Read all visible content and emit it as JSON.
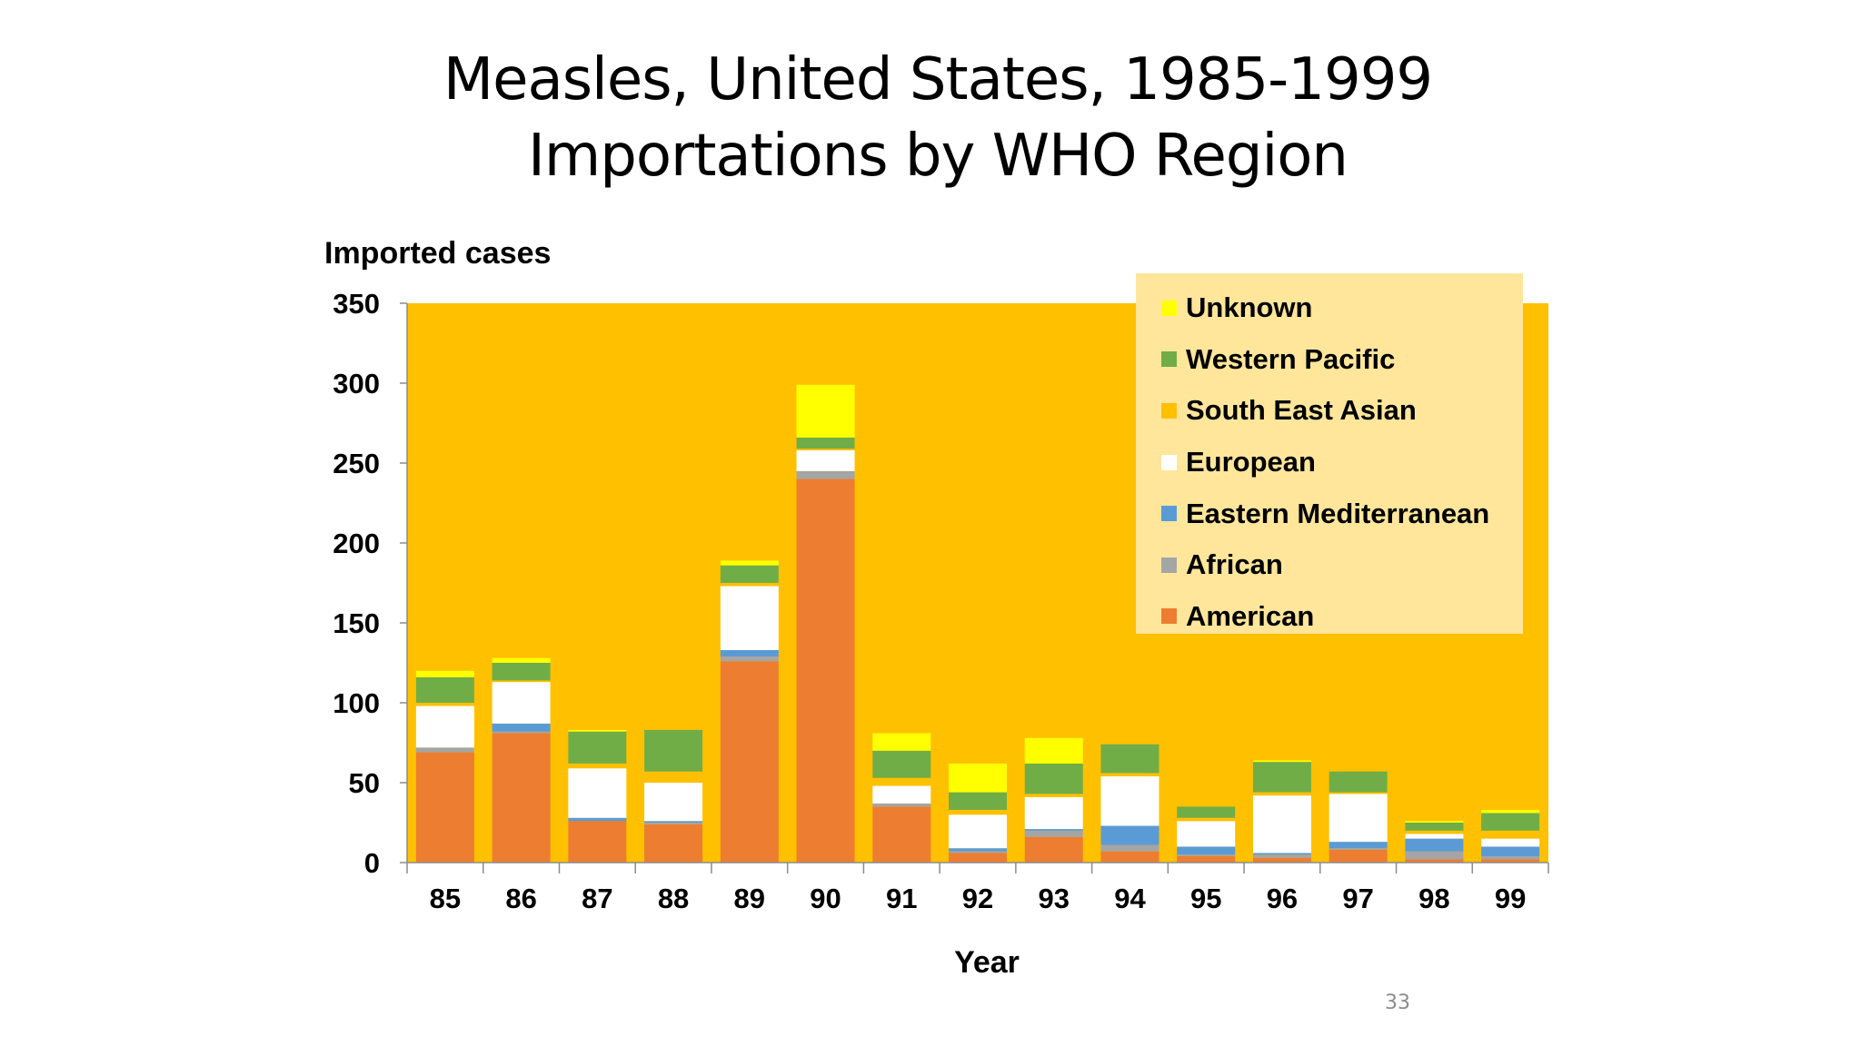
{
  "slide": {
    "title_line1": "Measles, United States, 1985-1999",
    "title_line2": "Importations by WHO Region",
    "page_number": "33"
  },
  "colors": {
    "plot_background": "#ffc000",
    "American": "#ed7d31",
    "African": "#a5a5a5",
    "Eastern Mediterranean": "#5b9bd5",
    "European": "#ffffff",
    "South East Asian": "#ffc000",
    "Western Pacific": "#70ad47",
    "Unknown": "#ffff00"
  },
  "legend": {
    "items": [
      {
        "label": "Unknown",
        "color": "#ffff00"
      },
      {
        "label": "Western Pacific",
        "color": "#70ad47"
      },
      {
        "label": "South East Asian",
        "color": "#ffc000"
      },
      {
        "label": "European",
        "color": "#ffffff"
      },
      {
        "label": "Eastern Mediterranean",
        "color": "#5b9bd5"
      },
      {
        "label": "African",
        "color": "#a5a5a5"
      },
      {
        "label": "American",
        "color": "#ed7d31"
      }
    ]
  },
  "chart_data": {
    "type": "bar",
    "stacked": true,
    "title": "Measles, United States, 1985-1999 Importations by WHO Region",
    "xlabel": "Year",
    "ylabel": "Imported cases",
    "ylim": [
      0,
      350
    ],
    "yticks": [
      0,
      50,
      100,
      150,
      200,
      250,
      300,
      350
    ],
    "grid": false,
    "legend_position": "top-right",
    "categories": [
      "85",
      "86",
      "87",
      "88",
      "89",
      "90",
      "91",
      "92",
      "93",
      "94",
      "95",
      "96",
      "97",
      "98",
      "99"
    ],
    "series": [
      {
        "name": "American",
        "values": [
          69,
          81,
          26,
          24,
          126,
          240,
          35,
          6,
          16,
          7,
          4,
          3,
          8,
          2,
          2
        ]
      },
      {
        "name": "African",
        "values": [
          3,
          1,
          0,
          1,
          3,
          5,
          2,
          1,
          4,
          4,
          1,
          2,
          1,
          5,
          2
        ]
      },
      {
        "name": "Eastern Mediterranean",
        "values": [
          0,
          5,
          2,
          1,
          4,
          0,
          0,
          2,
          1,
          12,
          5,
          1,
          4,
          8,
          6
        ]
      },
      {
        "name": "European",
        "values": [
          26,
          26,
          31,
          24,
          40,
          13,
          11,
          21,
          20,
          31,
          16,
          36,
          30,
          3,
          5
        ]
      },
      {
        "name": "South East Asian",
        "values": [
          2,
          1,
          3,
          7,
          2,
          1,
          5,
          3,
          2,
          2,
          2,
          2,
          1,
          2,
          5
        ]
      },
      {
        "name": "Western Pacific",
        "values": [
          16,
          11,
          20,
          26,
          11,
          7,
          17,
          11,
          19,
          18,
          7,
          19,
          13,
          5,
          11
        ]
      },
      {
        "name": "Unknown",
        "values": [
          4,
          3,
          1,
          0,
          3,
          33,
          11,
          18,
          16,
          0,
          0,
          1,
          0,
          1,
          2
        ]
      }
    ]
  }
}
